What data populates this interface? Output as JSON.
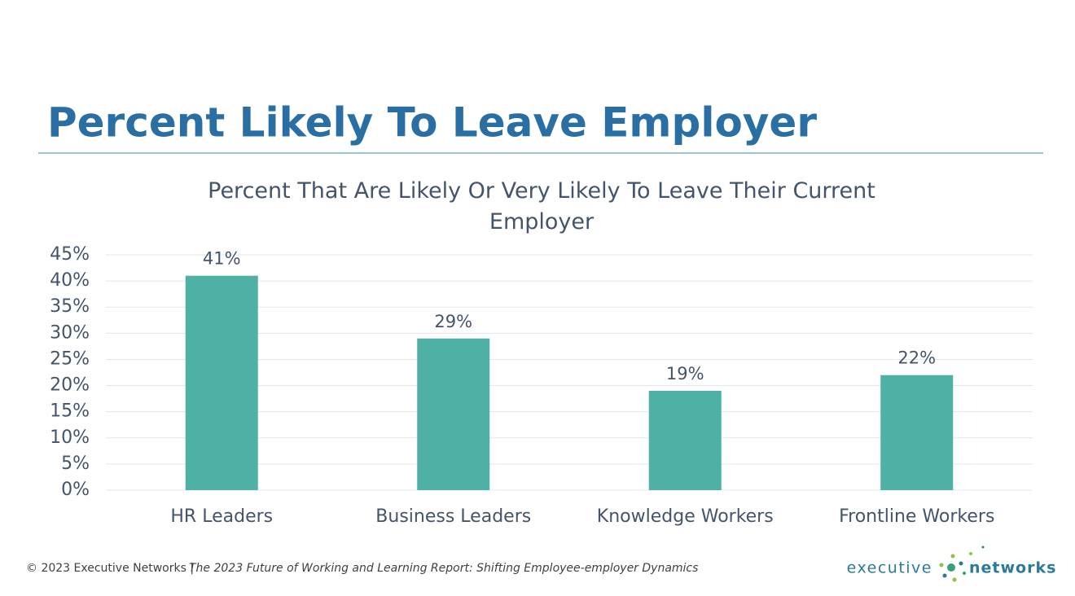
{
  "header": {
    "title": "Percent Likely To Leave Employer"
  },
  "chart_data": {
    "type": "bar",
    "title": "Percent That Are Likely Or Very Likely To Leave Their Current Employer",
    "categories": [
      "HR Leaders",
      "Business Leaders",
      "Knowledge Workers",
      "Frontline Workers"
    ],
    "values": [
      41,
      29,
      19,
      22
    ],
    "value_labels": [
      "41%",
      "29%",
      "19%",
      "22%"
    ],
    "color": "#4fb0a5",
    "ylim": [
      0,
      45
    ],
    "yticks": [
      {
        "value": 0,
        "label": "0%"
      },
      {
        "value": 5,
        "label": "5%"
      },
      {
        "value": 10,
        "label": "10%"
      },
      {
        "value": 15,
        "label": "15%"
      },
      {
        "value": 20,
        "label": "20%"
      },
      {
        "value": 25,
        "label": "25%"
      },
      {
        "value": 30,
        "label": "30%"
      },
      {
        "value": 35,
        "label": "35%"
      },
      {
        "value": 40,
        "label": "40%"
      },
      {
        "value": 45,
        "label": "45%"
      }
    ],
    "grid": true
  },
  "footer": {
    "copyright": "© 2023 Executive Networks |",
    "report": "The 2023 Future of Working and Learning Report: Shifting Employee-employer Dynamics"
  },
  "logo": {
    "left": "executive",
    "right": "networks"
  }
}
